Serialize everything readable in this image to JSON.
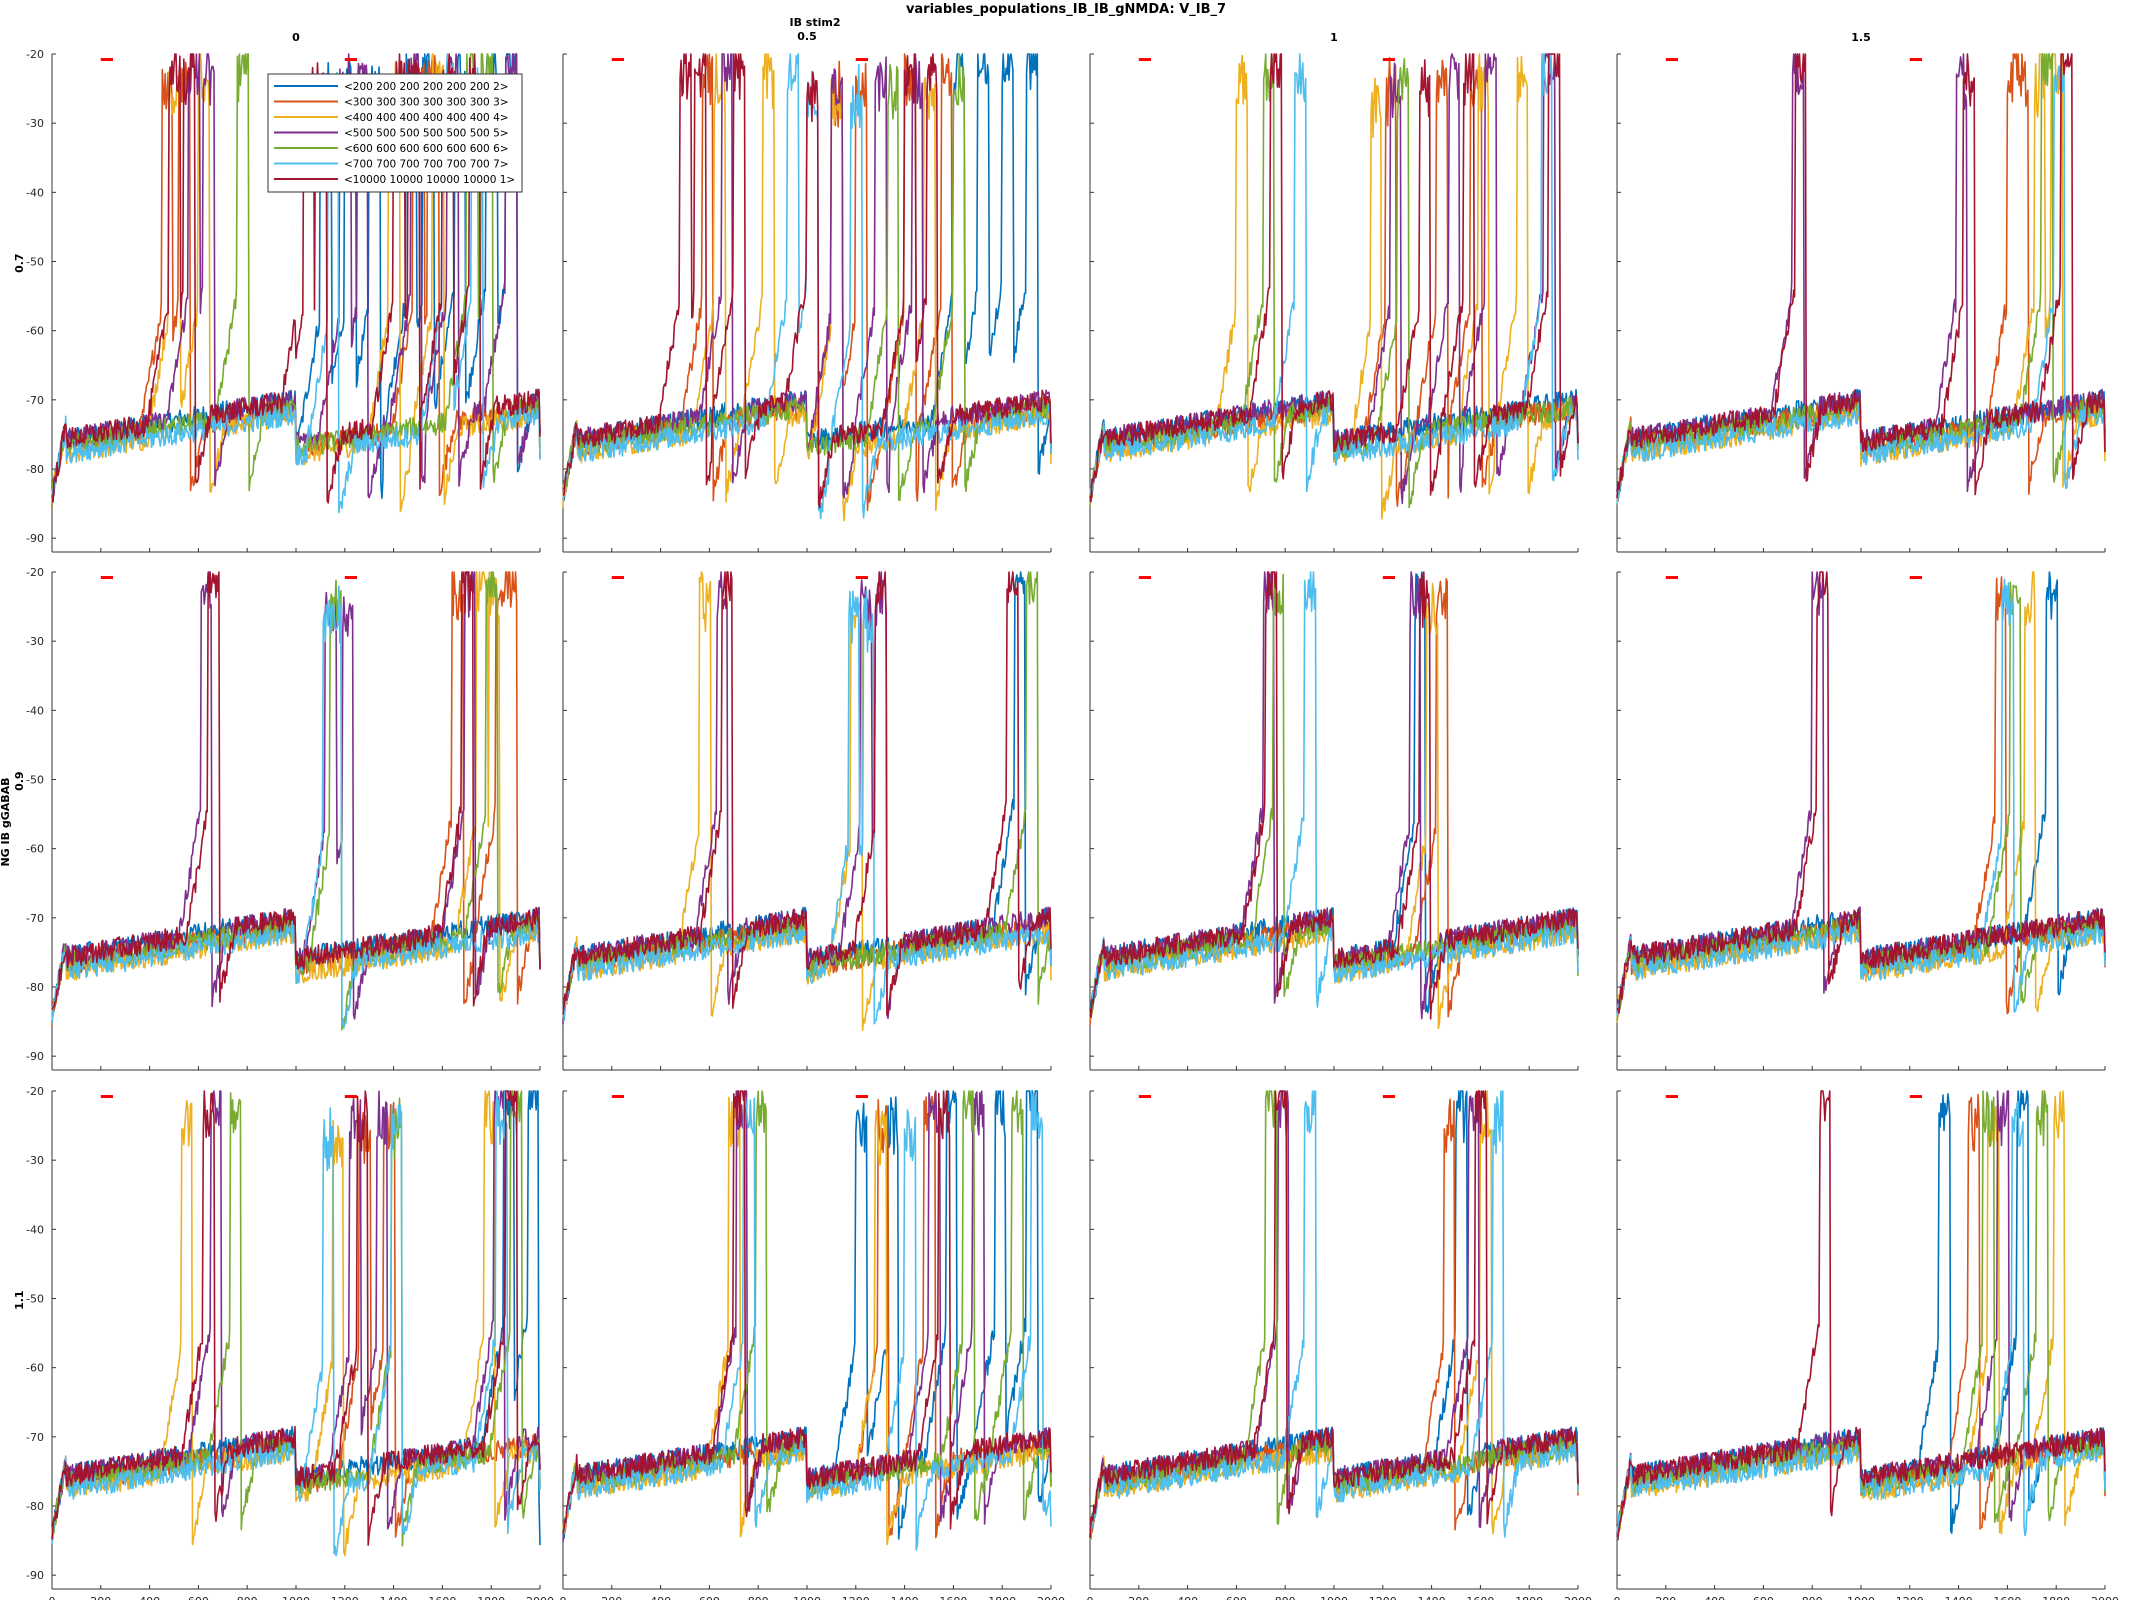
{
  "chart_data": {
    "type": "line",
    "title": "variables_populations_IB_IB_gNMDA: V_IB_7",
    "column_group_label": "IB stim2",
    "row_group_label": "NG IB gGABAB",
    "column_labels": [
      "0",
      "0.5",
      "1",
      "1.5"
    ],
    "row_labels": [
      "0.7",
      "0.9",
      "1.1"
    ],
    "xlim": [
      0,
      2000
    ],
    "ylim": [
      -92,
      -20
    ],
    "x_ticks": [
      0,
      200,
      400,
      600,
      800,
      1000,
      1200,
      1400,
      1600,
      1800,
      2000
    ],
    "x_tick_labels": [
      "0",
      "200",
      "400",
      "600",
      "800",
      "1000",
      "1200",
      "1400",
      "1600",
      "1800",
      "2000"
    ],
    "y_ticks": [
      -20,
      -30,
      -40,
      -50,
      -60,
      -70,
      -80,
      -90
    ],
    "y_tick_labels": [
      "-20",
      "-30",
      "-40",
      "-50",
      "-60",
      "-70",
      "-80",
      "-90"
    ],
    "grid": false,
    "legend_position": "top, first panel",
    "stim_markers": [
      {
        "x": [
          200,
          250
        ],
        "y": -20.8
      },
      {
        "x": [
          1200,
          1250
        ],
        "y": -20.8
      }
    ],
    "stim_marker_color": "#ff0000",
    "series": [
      {
        "name": "<200 200 200 200 200 200 2>",
        "color": "#0072bd"
      },
      {
        "name": "<300 300 300 300 300 300 3>",
        "color": "#d95319"
      },
      {
        "name": "<400 400 400 400 400 400 4>",
        "color": "#edb120"
      },
      {
        "name": "<500 500 500 500 500 500 5>",
        "color": "#7e2f8e"
      },
      {
        "name": "<600 600 600 600 600 600 6>",
        "color": "#77ac30"
      },
      {
        "name": "<700 700 700 700 700 700 7>",
        "color": "#4dbeee"
      },
      {
        "name": "<10000 10000 10000 10000 1>",
        "color": "#a2142f"
      }
    ],
    "panels": [
      {
        "row": 0,
        "col": 0,
        "spikes": [
          [
            1100,
            1200,
            1300,
            1450,
            1520,
            1650,
            1780,
            1860
          ],
          [
            450,
            520,
            1480,
            1540
          ],
          [
            480,
            600,
            1380,
            1560
          ],
          [
            560,
            620,
            1180,
            1250,
            1470,
            1620,
            1860
          ],
          [
            760,
            1700,
            1760
          ],
          [
            1130,
            1600,
            1720
          ],
          [
            480,
            540,
            1030,
            1080,
            1400,
            1460,
            1600,
            1710
          ]
        ]
      },
      {
        "row": 0,
        "col": 1,
        "spikes": [
          [
            1600,
            1700,
            1800,
            1900
          ],
          [
            570,
            1100,
            1200,
            1400,
            1550
          ],
          [
            620,
            820,
            1100,
            1480
          ],
          [
            650,
            1100,
            1280,
            1430
          ],
          [
            1330,
            1600
          ],
          [
            920,
            1000,
            1180
          ],
          [
            480,
            540,
            700,
            1000,
            1400,
            1490
          ]
        ]
      },
      {
        "row": 0,
        "col": 2,
        "spikes": [
          [],
          [
            1210,
            1420,
            1560
          ],
          [
            600,
            1150,
            1590,
            1750
          ],
          [
            1230,
            1470,
            1620,
            1860
          ],
          [
            710,
            1260
          ],
          [
            840,
            1850
          ],
          [
            740,
            1350,
            1530,
            1880
          ]
        ]
      },
      {
        "row": 0,
        "col": 3,
        "spikes": [
          [],
          [
            1600,
            1640
          ],
          [
            1710,
            1780
          ],
          [
            720,
            1390
          ],
          [
            1740
          ],
          [
            1790
          ],
          [
            730,
            1420,
            1820
          ]
        ]
      },
      {
        "row": 1,
        "col": 0,
        "spikes": [
          [],
          [
            1640,
            1820,
            1860
          ],
          [
            1740,
            1790
          ],
          [
            610,
            1120,
            1190,
            1690
          ],
          [
            1140,
            1780
          ],
          [
            1110,
            1140
          ],
          [
            640,
            1680
          ]
        ]
      },
      {
        "row": 1,
        "col": 1,
        "spikes": [
          [
            1850
          ],
          [],
          [
            560,
            1180
          ],
          [
            630,
            1220,
            1280
          ],
          [
            1900
          ],
          [
            1170,
            1230
          ],
          [
            650,
            1280,
            1820
          ]
        ]
      },
      {
        "row": 1,
        "col": 2,
        "spikes": [
          [
            1330
          ],
          [
            1420
          ],
          [
            1380
          ],
          [
            710,
            1310
          ],
          [
            750
          ],
          [
            880
          ],
          [
            720,
            1350
          ]
        ]
      },
      {
        "row": 1,
        "col": 3,
        "spikes": [
          [
            1760
          ],
          [
            1550
          ],
          [
            1670
          ],
          [
            800
          ],
          [
            1610
          ],
          [
            1580
          ],
          [
            820
          ]
        ]
      },
      {
        "row": 2,
        "col": 0,
        "spikes": [
          [
            1850,
            1950
          ],
          [
            1260,
            1360
          ],
          [
            530,
            1150,
            1770
          ],
          [
            650,
            1220,
            1330,
            1810
          ],
          [
            730,
            1390,
            1880
          ],
          [
            1110,
            1390,
            1820
          ],
          [
            620,
            1250,
            1860
          ]
        ]
      },
      {
        "row": 2,
        "col": 1,
        "spikes": [
          [
            1200,
            1330,
            1570,
            1770,
            1900
          ],
          [
            1290,
            1480
          ],
          [
            680,
            1280
          ],
          [
            710,
            1500,
            1680
          ],
          [
            790,
            1640,
            1840
          ],
          [
            740,
            1400,
            1920
          ],
          [
            700,
            1540
          ]
        ]
      },
      {
        "row": 2,
        "col": 2,
        "spikes": [
          [
            1500
          ],
          [
            1450
          ],
          [
            1600
          ],
          [
            770,
            1550
          ],
          [
            720
          ],
          [
            880,
            1650
          ],
          [
            760,
            1580
          ]
        ]
      },
      {
        "row": 2,
        "col": 3,
        "spikes": [
          [
            1320,
            1640
          ],
          [
            1440
          ],
          [
            1520,
            1790
          ],
          [
            1560
          ],
          [
            1500,
            1720
          ],
          [
            1620
          ],
          [
            830
          ]
        ]
      }
    ]
  }
}
